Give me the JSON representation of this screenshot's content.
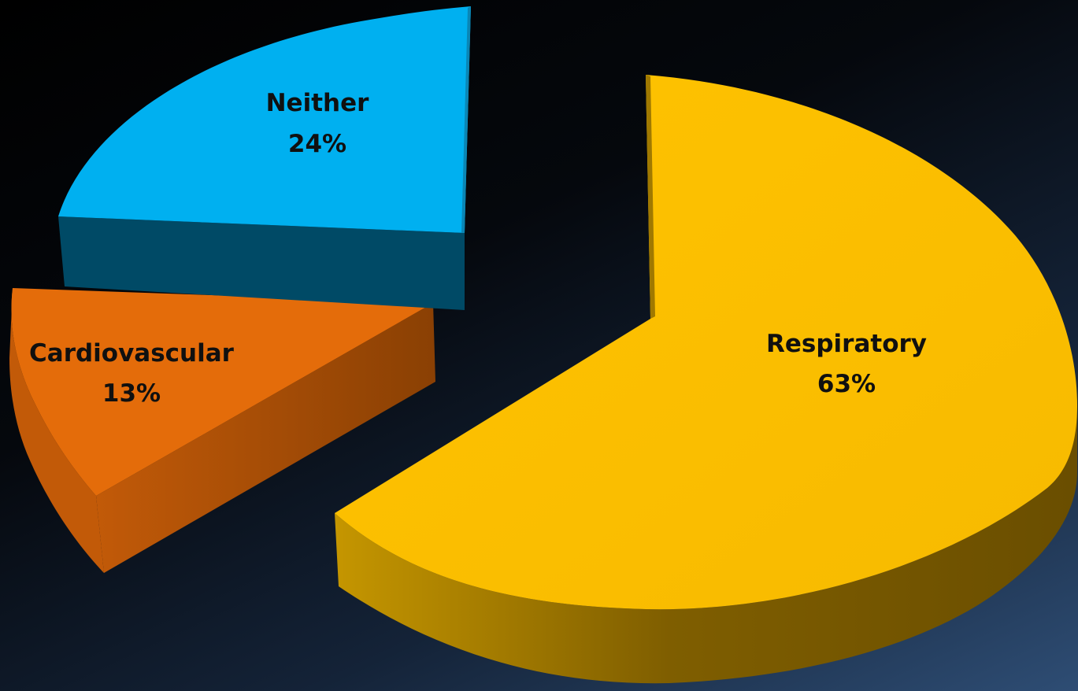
{
  "chart_data": {
    "type": "pie",
    "style": "3d-exploded",
    "slices": [
      {
        "label": "Respiratory",
        "value": 63,
        "value_label": "63%",
        "color": "#fbbf00",
        "side_color": "#7a5a00"
      },
      {
        "label": "Cardiovascular",
        "value": 13,
        "value_label": "13%",
        "color": "#e46c0a",
        "side_color": "#8f4305"
      },
      {
        "label": "Neither",
        "value": 24,
        "value_label": "24%",
        "color": "#00b0f0",
        "side_color": "#004a66"
      }
    ],
    "legend": "none",
    "background_colors": [
      "#000000",
      "#2e4d74"
    ]
  }
}
